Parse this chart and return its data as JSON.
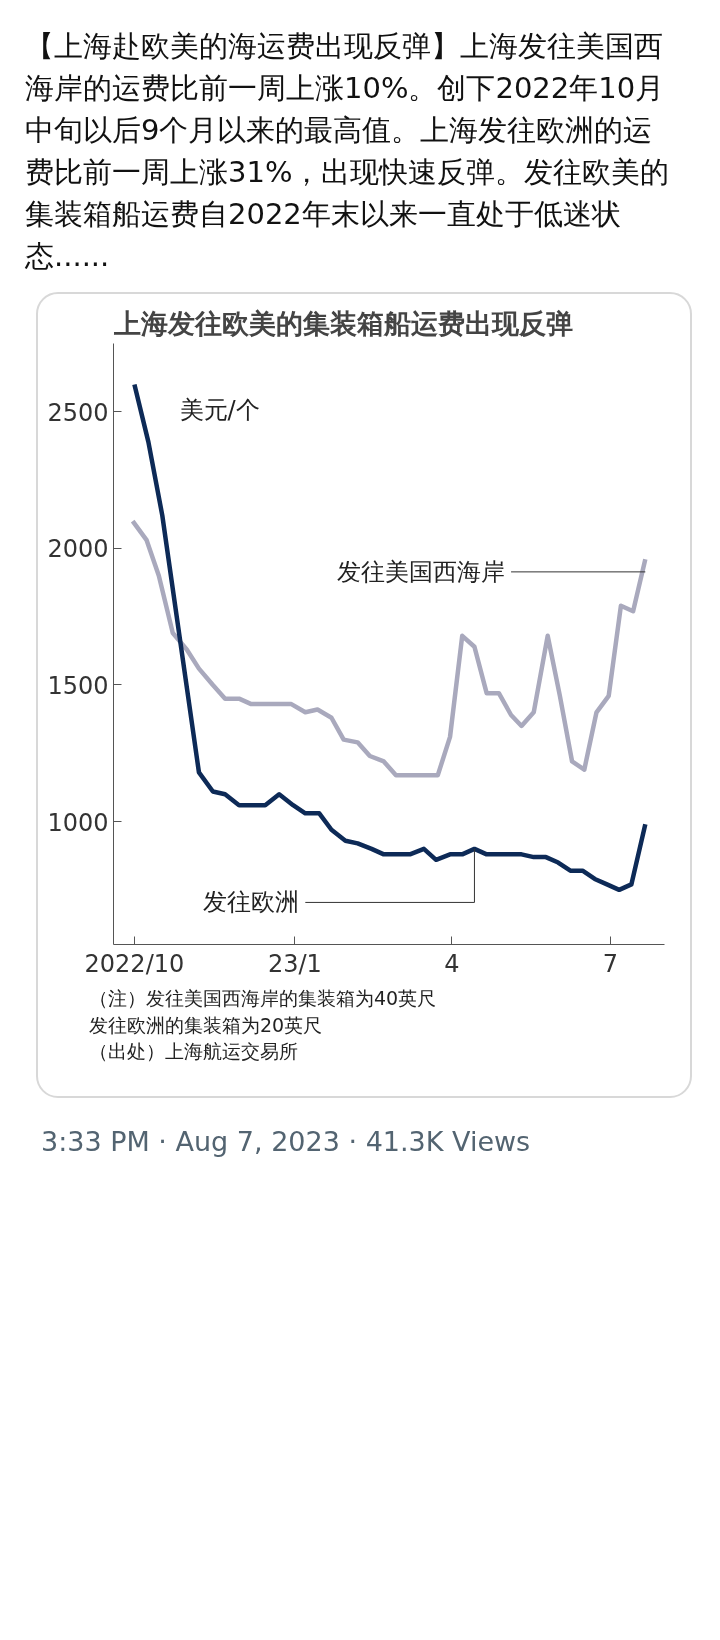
{
  "chart_data": {
    "type": "line",
    "title": "上海发往欧美的集装箱船运费出现反弹",
    "ylabel": "美元/个",
    "annotations": [
      "【上海赴欧美的海运费出现反弹】上海发往美国西海岸的运费比前一周上涨10%。创下2022年10月中旬以后9个月以来的最高值。上海发往欧洲的运费比前一周上涨31%，出现快速反弹。发往欧美的集装箱船运费自2022年末以来一直处于低迷状态......",
      "（注）发往美国西海岸的集装箱为40英尺",
      "发往欧洲的集装箱为20英尺",
      "（出处）上海航运交易所",
      "3:33 PM · Aug 7, 2023 · 41.3K Views"
    ],
    "series": [
      {
        "name": "发往美国西海岸",
        "color": "#a9a9bd",
        "x": [
          "2022-09-30",
          "2022-10-08",
          "2022-10-15",
          "2022-10-23",
          "2022-10-31",
          "2022-11-07",
          "2022-11-15",
          "2022-11-22",
          "2022-11-30",
          "2022-12-07",
          "2022-12-30",
          "2023-01-07",
          "2023-01-14",
          "2023-01-22",
          "2023-01-29",
          "2023-02-06",
          "2023-02-13",
          "2023-02-21",
          "2023-02-28",
          "2023-03-24",
          "2023-03-31",
          "2023-04-07",
          "2023-04-14",
          "2023-04-21",
          "2023-04-28",
          "2023-05-05",
          "2023-05-11",
          "2023-05-18",
          "2023-05-26",
          "2023-06-02",
          "2023-06-09",
          "2023-06-16",
          "2023-06-23",
          "2023-06-30",
          "2023-07-07",
          "2023-07-14",
          "2023-07-21"
        ],
        "values": [
          2100,
          2030,
          1900,
          1690,
          1630,
          1560,
          1500,
          1450,
          1450,
          1430,
          1430,
          1400,
          1410,
          1380,
          1300,
          1290,
          1240,
          1220,
          1170,
          1170,
          1310,
          1680,
          1640,
          1470,
          1470,
          1390,
          1350,
          1400,
          1680,
          1460,
          1220,
          1190,
          1400,
          1460,
          1790,
          1770,
          1960
        ]
      },
      {
        "name": "发往欧洲",
        "color": "#0d2a57",
        "x": [
          "2022-10-01",
          "2022-10-09",
          "2022-10-17",
          "2022-11-07",
          "2022-11-15",
          "2022-11-22",
          "2022-11-30",
          "2022-12-15",
          "2022-12-23",
          "2022-12-31",
          "2023-01-07",
          "2023-01-15",
          "2023-01-22",
          "2023-01-30",
          "2023-02-06",
          "2023-02-14",
          "2023-02-21",
          "2023-03-08",
          "2023-03-16",
          "2023-03-23",
          "2023-03-31",
          "2023-04-07",
          "2023-04-14",
          "2023-04-21",
          "2023-05-11",
          "2023-05-18",
          "2023-05-25",
          "2023-06-01",
          "2023-06-08",
          "2023-06-15",
          "2023-06-22",
          "2023-06-29",
          "2023-07-06",
          "2023-07-13",
          "2023-07-21"
        ],
        "values": [
          2600,
          2390,
          2120,
          1180,
          1110,
          1100,
          1060,
          1060,
          1100,
          1060,
          1030,
          1030,
          970,
          930,
          920,
          900,
          880,
          880,
          900,
          860,
          880,
          880,
          900,
          880,
          880,
          870,
          870,
          850,
          820,
          820,
          790,
          770,
          750,
          770,
          990
        ]
      }
    ],
    "xlim": [
      "2022-09-19",
      "2023-08-01"
    ],
    "xticks": [
      {
        "value": "2022-10-01",
        "label": "2022/10"
      },
      {
        "value": "2023-01-01",
        "label": "23/1"
      },
      {
        "value": "2023-04-01",
        "label": "4"
      },
      {
        "value": "2023-07-01",
        "label": "7"
      }
    ],
    "ylim": [
      550,
      2750
    ],
    "yticks": [
      1000,
      1500,
      2000,
      2500
    ],
    "grid": false,
    "legend": false,
    "marker": "none",
    "line_style": "solid"
  }
}
